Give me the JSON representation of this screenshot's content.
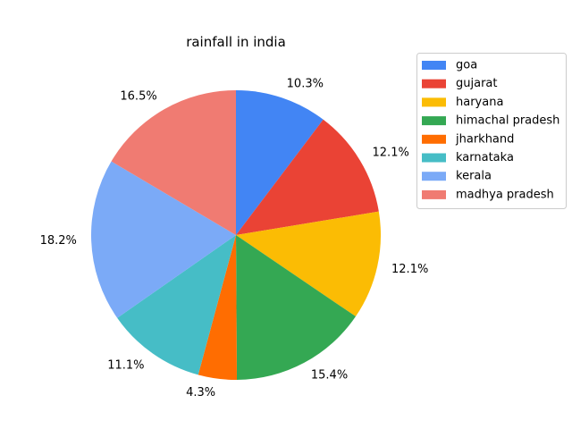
{
  "chart_data": {
    "type": "pie",
    "title": "rainfall in india",
    "start_angle_deg": 90,
    "direction": "clockwise",
    "legend_position": "upper-right, outside plot",
    "slices": [
      {
        "label": "goa",
        "percent": 10.3,
        "percent_label": "10.3%",
        "color": "#4285f4"
      },
      {
        "label": "gujarat",
        "percent": 12.1,
        "percent_label": "12.1%",
        "color": "#ea4335"
      },
      {
        "label": "haryana",
        "percent": 12.1,
        "percent_label": "12.1%",
        "color": "#fbbc04"
      },
      {
        "label": "himachal pradesh",
        "percent": 15.4,
        "percent_label": "15.4%",
        "color": "#34a853"
      },
      {
        "label": "jharkhand",
        "percent": 4.3,
        "percent_label": "4.3%",
        "color": "#ff6d01"
      },
      {
        "label": "karnataka",
        "percent": 11.1,
        "percent_label": "11.1%",
        "color": "#46bdc6"
      },
      {
        "label": "kerala",
        "percent": 18.2,
        "percent_label": "18.2%",
        "color": "#7baaf7"
      },
      {
        "label": "madhya pradesh",
        "percent": 16.5,
        "percent_label": "16.5%",
        "color": "#f07b72"
      }
    ]
  }
}
